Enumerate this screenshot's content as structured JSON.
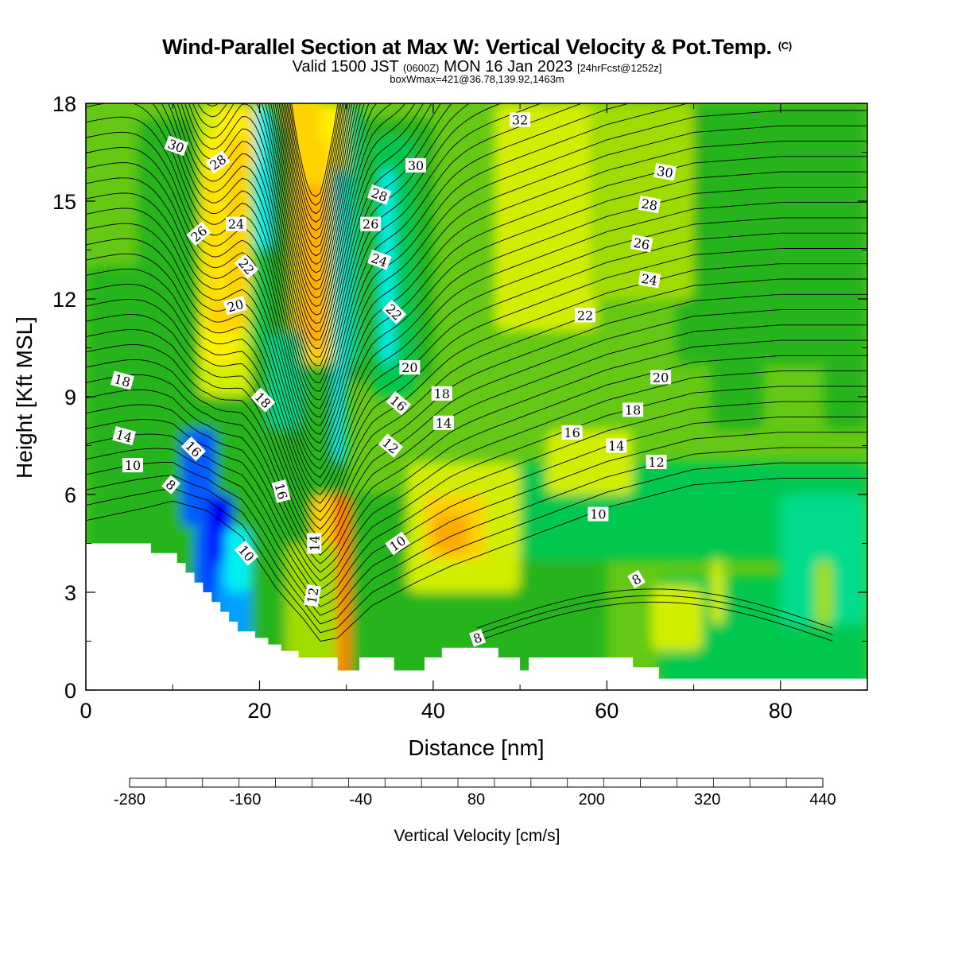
{
  "header": {
    "title": "Wind-Parallel Section at Max W: Vertical Velocity & Pot.Temp.",
    "copyright": "(C)",
    "valid_prefix": "Valid 1500 JST",
    "valid_utc": "(0600Z)",
    "valid_date": "MON 16 Jan 2023",
    "forecast": "[24hrFcst@1252z]",
    "box_info": "boxWmax=421@36.78,139.92,1463m"
  },
  "chart_data": {
    "type": "heatmap",
    "xlabel": "Distance [nm]",
    "ylabel": "Height [Kft MSL]",
    "xlim": [
      0,
      90
    ],
    "ylim": [
      0,
      18
    ],
    "x_ticks": [
      "0",
      "20",
      "40",
      "60",
      "80"
    ],
    "y_ticks": [
      "0",
      "3",
      "6",
      "9",
      "12",
      "15",
      "18"
    ],
    "colorbar": {
      "title": "Vertical Velocity [cm/s]",
      "tick_labels": [
        "-280",
        "-160",
        "-40",
        "80",
        "200",
        "320",
        "440"
      ],
      "colors": [
        "#0000ff",
        "#005aff",
        "#00a0ff",
        "#00f0f0",
        "#00dc8c",
        "#00c850",
        "#28b41e",
        "#64c814",
        "#a0dc00",
        "#d2ee00",
        "#fff000",
        "#ffd200",
        "#ffaa00",
        "#ff7800",
        "#ff4600",
        "#ff0000",
        "#c8003c",
        "#960064",
        "#5a0096"
      ]
    },
    "terrain_profile": [
      [
        0,
        4.5
      ],
      [
        7.5,
        4.5
      ],
      [
        7.5,
        4.2
      ],
      [
        10.5,
        4.2
      ],
      [
        10.5,
        3.9
      ],
      [
        11.5,
        3.9
      ],
      [
        11.5,
        3.6
      ],
      [
        12.5,
        3.6
      ],
      [
        12.5,
        3.3
      ],
      [
        13.5,
        3.3
      ],
      [
        13.5,
        3.0
      ],
      [
        14.5,
        3.0
      ],
      [
        14.5,
        2.7
      ],
      [
        15.5,
        2.7
      ],
      [
        15.5,
        2.4
      ],
      [
        16.5,
        2.4
      ],
      [
        16.5,
        2.1
      ],
      [
        17.5,
        2.1
      ],
      [
        17.5,
        1.8
      ],
      [
        19.5,
        1.8
      ],
      [
        19.5,
        1.6
      ],
      [
        21,
        1.6
      ],
      [
        21,
        1.4
      ],
      [
        22.5,
        1.4
      ],
      [
        22.5,
        1.2
      ],
      [
        24.5,
        1.2
      ],
      [
        24.5,
        1.0
      ],
      [
        29,
        1.0
      ],
      [
        29,
        0.6
      ],
      [
        31.5,
        0.6
      ],
      [
        31.5,
        1.0
      ],
      [
        35.5,
        1.0
      ],
      [
        35.5,
        0.6
      ],
      [
        39,
        0.6
      ],
      [
        39,
        1.0
      ],
      [
        41,
        1.0
      ],
      [
        41,
        1.3
      ],
      [
        47.5,
        1.3
      ],
      [
        47.5,
        1.0
      ],
      [
        50,
        1.0
      ],
      [
        50,
        0.6
      ],
      [
        51,
        0.6
      ],
      [
        51,
        1.0
      ],
      [
        63,
        1.0
      ],
      [
        63,
        0.7
      ],
      [
        66,
        0.7
      ],
      [
        66,
        0.35
      ],
      [
        90,
        0.35
      ]
    ],
    "theta_contours": [
      6,
      8,
      10,
      12,
      14,
      16,
      18,
      20,
      22,
      24,
      26,
      28,
      30,
      32
    ],
    "contour_labels": [
      {
        "t": "30",
        "x": 10.4,
        "y": 16.7,
        "r": 20
      },
      {
        "t": "28",
        "x": 15.2,
        "y": 16.2,
        "r": -35
      },
      {
        "t": "26",
        "x": 13,
        "y": 14.0,
        "r": -40
      },
      {
        "t": "24",
        "x": 17.3,
        "y": 14.3,
        "r": 0
      },
      {
        "t": "22",
        "x": 18.5,
        "y": 13.0,
        "r": 50
      },
      {
        "t": "20",
        "x": 17.2,
        "y": 11.8,
        "r": -15
      },
      {
        "t": "18",
        "x": 4.2,
        "y": 9.5,
        "r": 15
      },
      {
        "t": "18",
        "x": 20.4,
        "y": 8.9,
        "r": 45
      },
      {
        "t": "14",
        "x": 4.4,
        "y": 7.8,
        "r": 15
      },
      {
        "t": "16",
        "x": 12.4,
        "y": 7.4,
        "r": 45
      },
      {
        "t": "10",
        "x": 5.4,
        "y": 6.9,
        "r": 0
      },
      {
        "t": "8",
        "x": 9.8,
        "y": 6.3,
        "r": 40
      },
      {
        "t": "16",
        "x": 22.5,
        "y": 6.1,
        "r": 75
      },
      {
        "t": "14",
        "x": 26.3,
        "y": 4.5,
        "r": -90
      },
      {
        "t": "10",
        "x": 18.5,
        "y": 4.2,
        "r": 50
      },
      {
        "t": "12",
        "x": 26.1,
        "y": 2.9,
        "r": -80
      },
      {
        "t": "32",
        "x": 50,
        "y": 17.5,
        "r": 0
      },
      {
        "t": "30",
        "x": 38,
        "y": 16.1,
        "r": 0
      },
      {
        "t": "28",
        "x": 33.8,
        "y": 15.2,
        "r": 20
      },
      {
        "t": "26",
        "x": 32.8,
        "y": 14.3,
        "r": 0
      },
      {
        "t": "24",
        "x": 33.8,
        "y": 13.2,
        "r": 20
      },
      {
        "t": "22",
        "x": 35.5,
        "y": 11.6,
        "r": 45
      },
      {
        "t": "20",
        "x": 37.3,
        "y": 9.9,
        "r": 0
      },
      {
        "t": "18",
        "x": 41,
        "y": 9.1,
        "r": 0
      },
      {
        "t": "16",
        "x": 36,
        "y": 8.8,
        "r": 40
      },
      {
        "t": "14",
        "x": 41.2,
        "y": 8.2,
        "r": 0
      },
      {
        "t": "12",
        "x": 35.1,
        "y": 7.5,
        "r": 40
      },
      {
        "t": "10",
        "x": 35.9,
        "y": 4.5,
        "r": -35
      },
      {
        "t": "8",
        "x": 45.1,
        "y": 1.6,
        "r": -20
      },
      {
        "t": "30",
        "x": 66.7,
        "y": 15.9,
        "r": 10
      },
      {
        "t": "28",
        "x": 64.9,
        "y": 14.9,
        "r": 10
      },
      {
        "t": "26",
        "x": 64,
        "y": 13.7,
        "r": 10
      },
      {
        "t": "24",
        "x": 64.9,
        "y": 12.6,
        "r": 10
      },
      {
        "t": "22",
        "x": 57.5,
        "y": 11.5,
        "r": 0
      },
      {
        "t": "20",
        "x": 66.2,
        "y": 9.6,
        "r": 0
      },
      {
        "t": "18",
        "x": 63,
        "y": 8.6,
        "r": 0
      },
      {
        "t": "16",
        "x": 56,
        "y": 7.9,
        "r": 0
      },
      {
        "t": "14",
        "x": 61.1,
        "y": 7.5,
        "r": 0
      },
      {
        "t": "12",
        "x": 65.7,
        "y": 7.0,
        "r": 0
      },
      {
        "t": "10",
        "x": 59,
        "y": 5.4,
        "r": 0
      },
      {
        "t": "8",
        "x": 63.4,
        "y": 3.4,
        "r": -30
      }
    ]
  }
}
